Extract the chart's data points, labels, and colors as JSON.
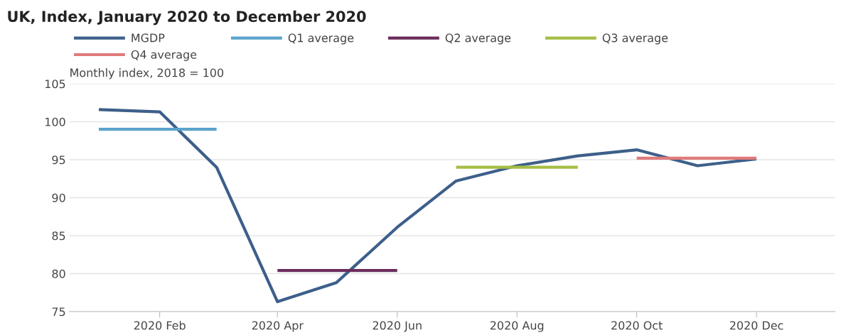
{
  "chart_data": {
    "type": "line",
    "title": "UK, Index, January 2020 to December 2020",
    "ylabel": "Monthly index, 2018 = 100",
    "x": [
      "2020-01",
      "2020-02",
      "2020-03",
      "2020-04",
      "2020-05",
      "2020-06",
      "2020-07",
      "2020-08",
      "2020-09",
      "2020-10",
      "2020-11",
      "2020-12"
    ],
    "series": [
      {
        "name": "MGDP",
        "color": "#3d5f8a",
        "values": [
          101.6,
          101.3,
          94.0,
          76.3,
          78.8,
          86.1,
          92.2,
          94.2,
          95.5,
          96.3,
          94.2,
          95.1
        ]
      },
      {
        "name": "Q1 average",
        "color": "#5aa3cc",
        "x": [
          "2020-01",
          "2020-03"
        ],
        "values": [
          99.0,
          99.0
        ]
      },
      {
        "name": "Q2 average",
        "color": "#6b2d5c",
        "x": [
          "2020-04",
          "2020-06"
        ],
        "values": [
          80.4,
          80.4
        ]
      },
      {
        "name": "Q3 average",
        "color": "#a5be45",
        "x": [
          "2020-07",
          "2020-09"
        ],
        "values": [
          94.0,
          94.0
        ]
      },
      {
        "name": "Q4 average",
        "color": "#e07a7a",
        "x": [
          "2020-10",
          "2020-12"
        ],
        "values": [
          95.2,
          95.2
        ]
      }
    ],
    "xlim": [
      "2019-12-17",
      "2021-01-10"
    ],
    "xticks": [
      {
        "value": "2020-02",
        "label": "2020 Feb"
      },
      {
        "value": "2020-04",
        "label": "2020 Apr"
      },
      {
        "value": "2020-06",
        "label": "2020 Jun"
      },
      {
        "value": "2020-08",
        "label": "2020 Aug"
      },
      {
        "value": "2020-10",
        "label": "2020 Oct"
      },
      {
        "value": "2020-12",
        "label": "2020 Dec"
      }
    ],
    "ylim": [
      75,
      105
    ],
    "yticks": [
      75,
      80,
      85,
      90,
      95,
      100,
      105
    ],
    "grid": "y",
    "legend": "top",
    "marker": "none",
    "line_style": "solid"
  }
}
